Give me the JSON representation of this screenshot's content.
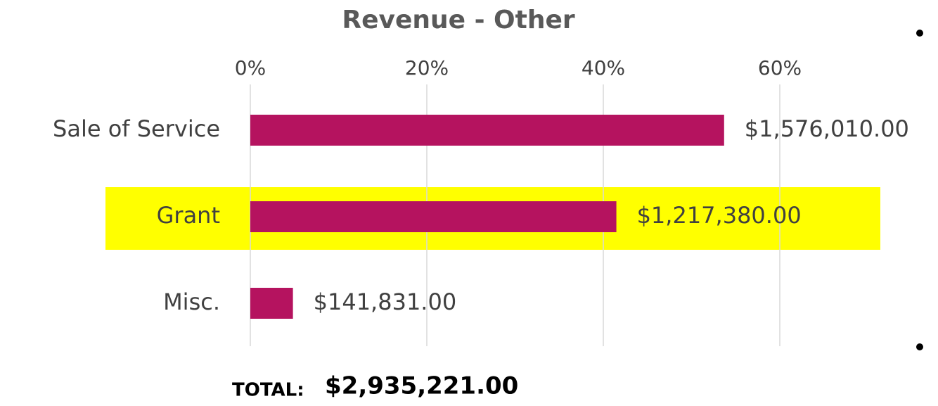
{
  "chart_data": {
    "type": "bar",
    "orientation": "horizontal",
    "title": "Revenue - Other",
    "categories": [
      "Sale of Service",
      "Grant",
      "Misc."
    ],
    "values": [
      53.69,
      41.48,
      4.83
    ],
    "value_labels": [
      "$1,576,010.00",
      "$1,217,380.00",
      "$141,831.00"
    ],
    "color": "#b5135f",
    "xlim": [
      0,
      70
    ],
    "xticks": [
      {
        "value": 0,
        "label": "0%"
      },
      {
        "value": 20,
        "label": "20%"
      },
      {
        "value": 40,
        "label": "40%"
      },
      {
        "value": 60,
        "label": "60%"
      }
    ],
    "grid": true
  },
  "footer": {
    "label": "TOTAL:",
    "value": "$2,935,221.00"
  }
}
